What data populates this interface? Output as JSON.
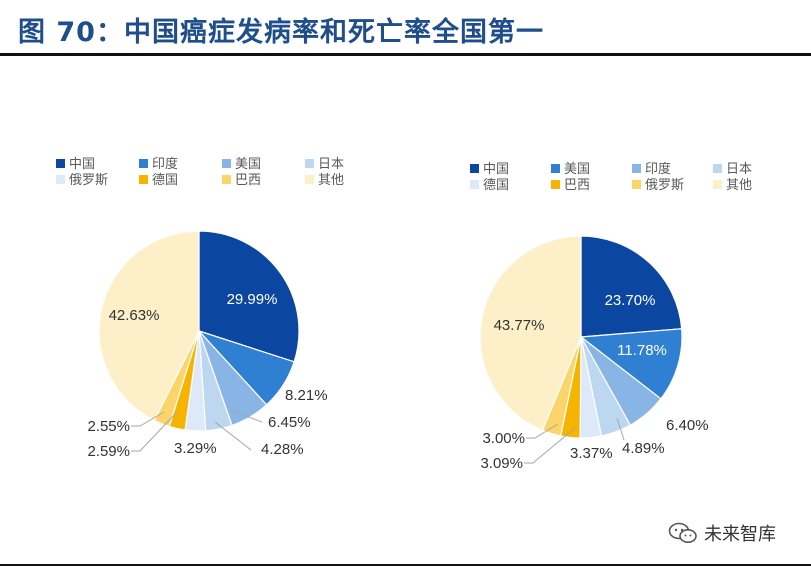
{
  "figure": {
    "title": "图 70：中国癌症发病率和死亡率全国第一",
    "watermark": "未来智库"
  },
  "chart_data": [
    {
      "type": "pie",
      "title": "",
      "series": [
        {
          "label": "中国",
          "value": 29.99,
          "display": "29.99%",
          "color": "#0b47a1"
        },
        {
          "label": "印度",
          "value": 8.21,
          "display": "8.21%",
          "color": "#2f7fd2"
        },
        {
          "label": "美国",
          "value": 6.45,
          "display": "6.45%",
          "color": "#89b5e6"
        },
        {
          "label": "日本",
          "value": 4.28,
          "display": "4.28%",
          "color": "#bdd7f1"
        },
        {
          "label": "俄罗斯",
          "value": 3.29,
          "display": "3.29%",
          "color": "#dde9f8"
        },
        {
          "label": "德国",
          "value": 2.59,
          "display": "2.59%",
          "color": "#f5b400"
        },
        {
          "label": "巴西",
          "value": 2.55,
          "display": "2.55%",
          "color": "#fbd56a"
        },
        {
          "label": "其他",
          "value": 42.63,
          "display": "42.63%",
          "color": "#fdf0c8"
        }
      ],
      "legend_position": "top"
    },
    {
      "type": "pie",
      "title": "",
      "series": [
        {
          "label": "中国",
          "value": 23.7,
          "display": "23.70%",
          "color": "#0b47a1"
        },
        {
          "label": "美国",
          "value": 11.78,
          "display": "11.78%",
          "color": "#2f7fd2"
        },
        {
          "label": "印度",
          "value": 6.4,
          "display": "6.40%",
          "color": "#89b5e6"
        },
        {
          "label": "日本",
          "value": 4.89,
          "display": "4.89%",
          "color": "#bdd7f1"
        },
        {
          "label": "德国",
          "value": 3.37,
          "display": "3.37%",
          "color": "#dde9f8"
        },
        {
          "label": "巴西",
          "value": 3.09,
          "display": "3.09%",
          "color": "#f5b400"
        },
        {
          "label": "俄罗斯",
          "value": 3.0,
          "display": "3.00%",
          "color": "#fbd56a"
        },
        {
          "label": "其他",
          "value": 43.77,
          "display": "43.77%",
          "color": "#fdf0c8"
        }
      ],
      "legend_position": "top"
    }
  ]
}
